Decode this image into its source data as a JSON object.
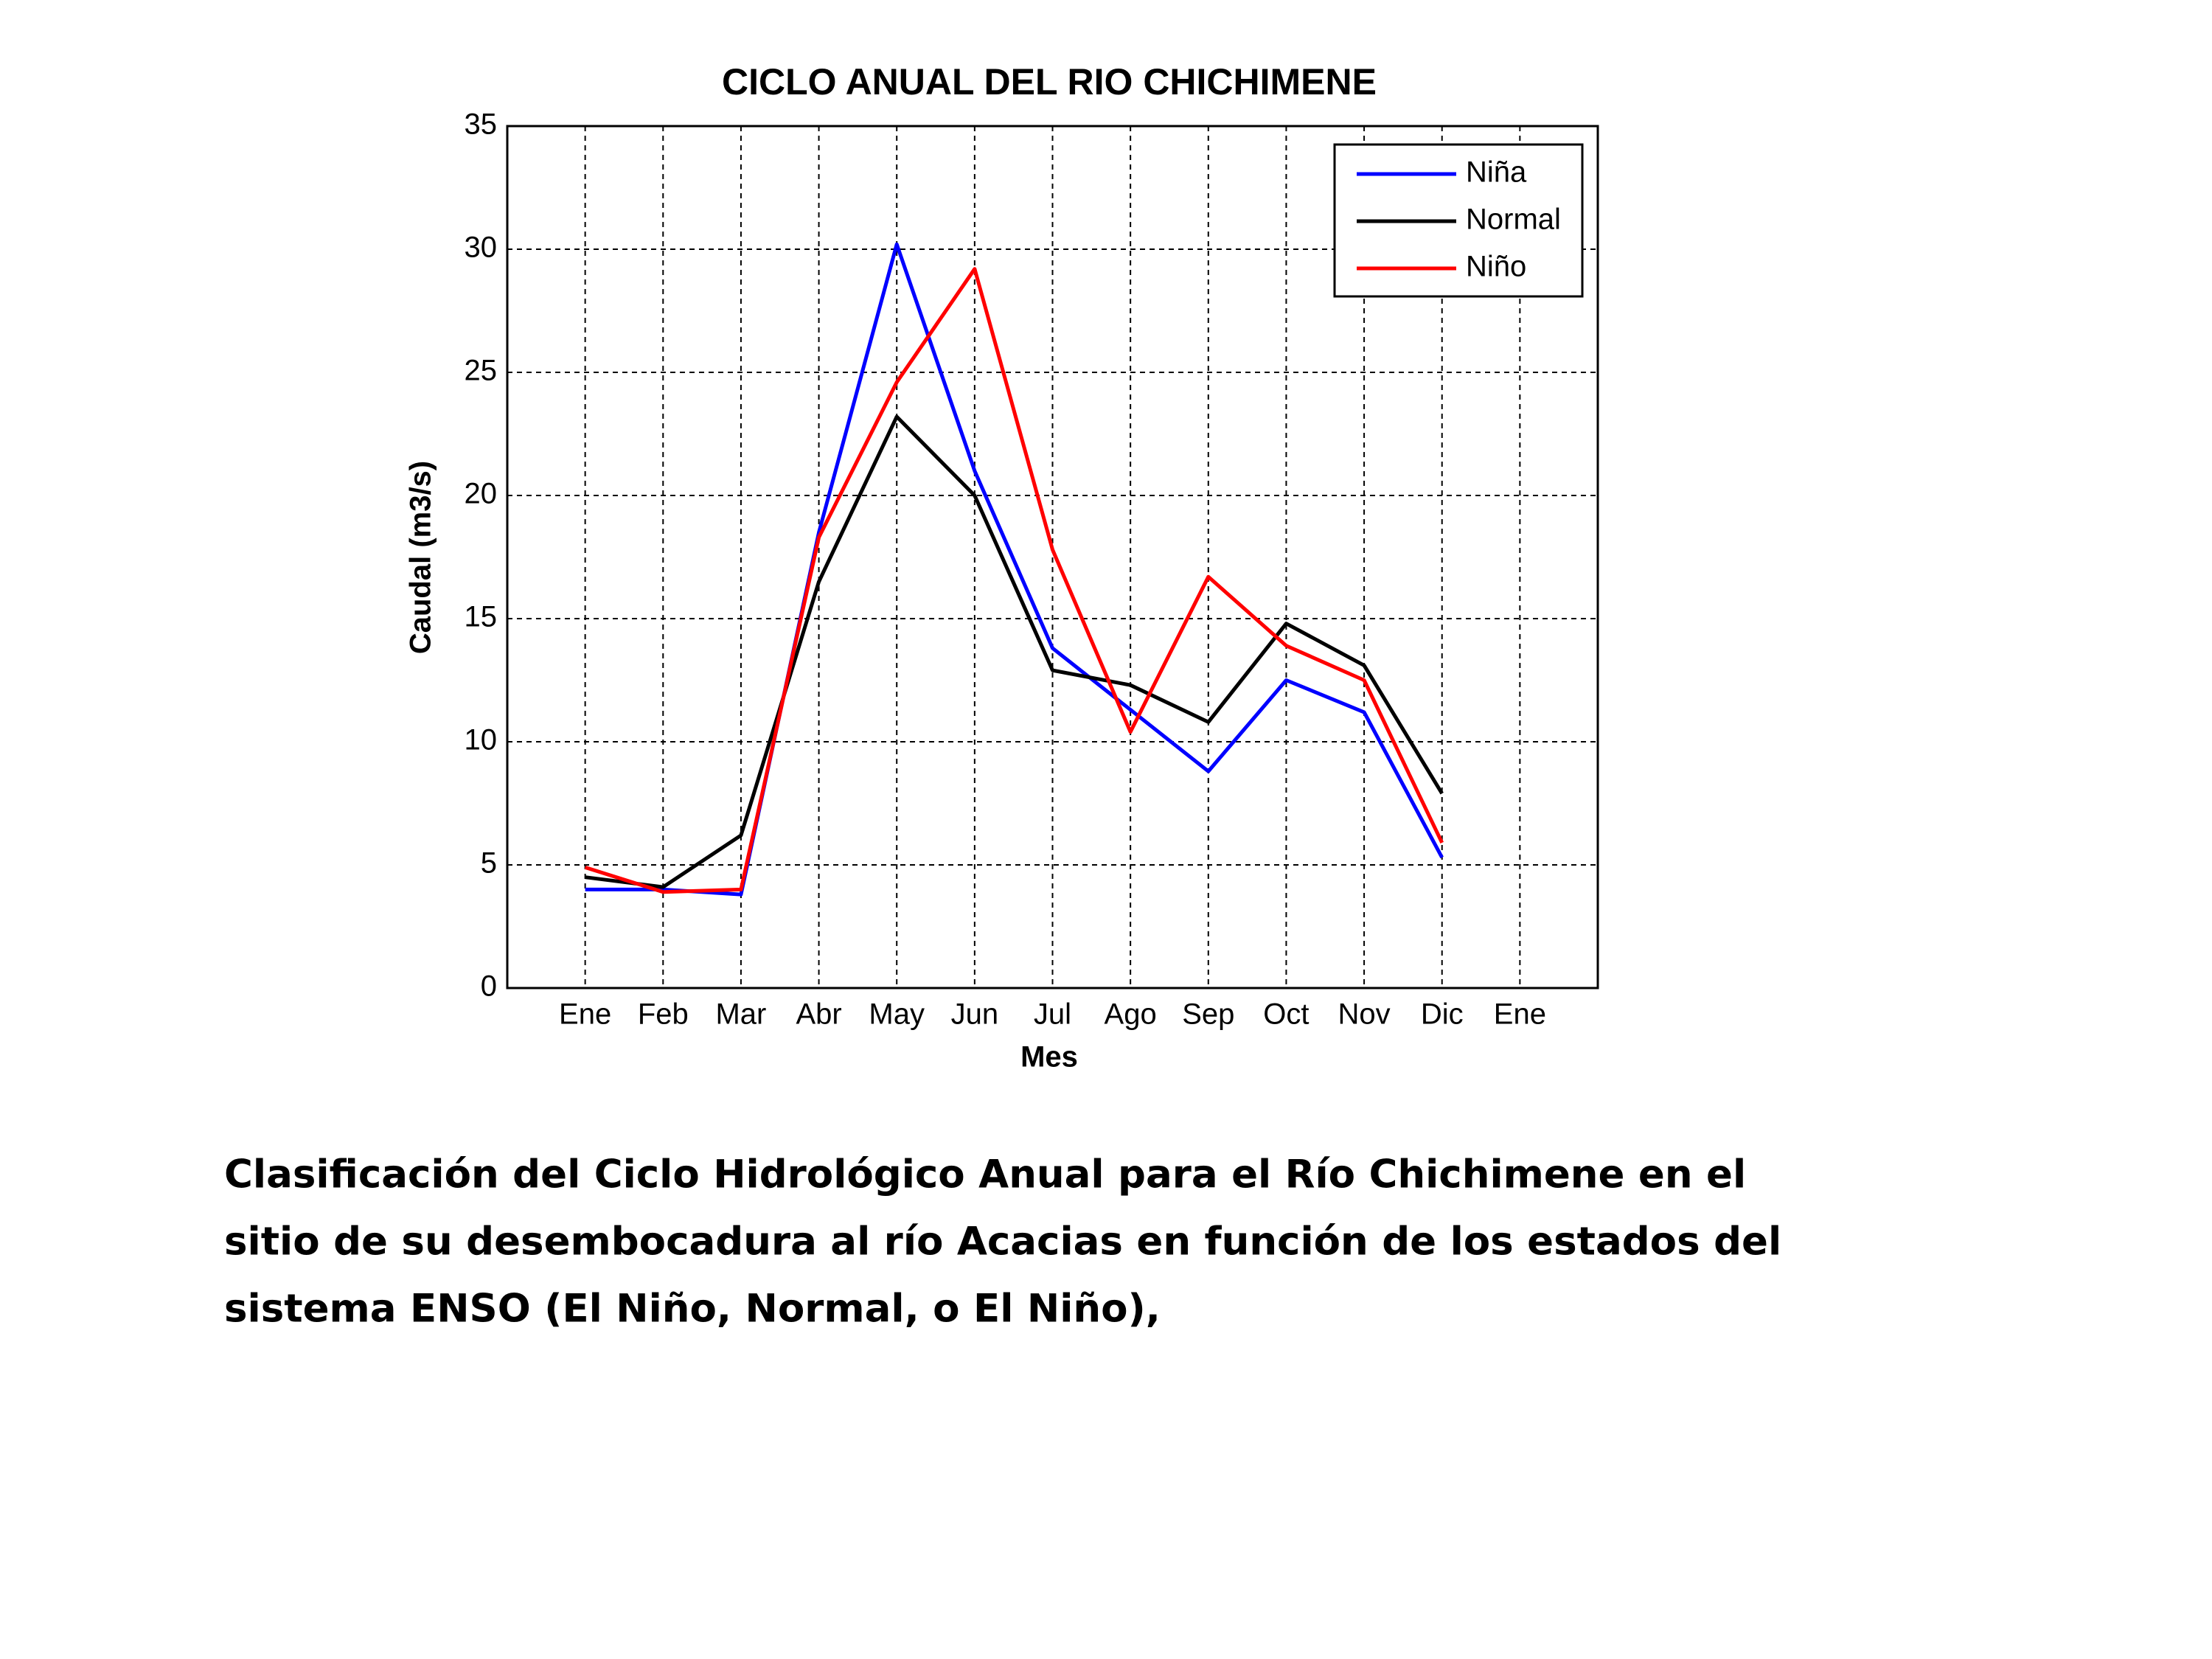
{
  "chart_data": {
    "type": "line",
    "title": "CICLO ANUAL DEL RIO CHICHIMENE",
    "x_label": "Mes",
    "y_label": "Caudal (m3/s)",
    "categories": [
      "Ene",
      "Feb",
      "Mar",
      "Abr",
      "May",
      "Jun",
      "Jul",
      "Ago",
      "Sep",
      "Oct",
      "Nov",
      "Dic",
      "Ene"
    ],
    "series": [
      {
        "name": "Niña",
        "color": "#0000ff",
        "values": [
          4.0,
          4.0,
          3.8,
          18.5,
          30.2,
          21.0,
          13.8,
          11.3,
          8.8,
          12.5,
          11.2,
          5.3,
          null
        ]
      },
      {
        "name": "Normal",
        "color": "#000000",
        "values": [
          4.5,
          4.1,
          6.2,
          16.5,
          23.2,
          20.0,
          12.9,
          12.3,
          10.8,
          14.8,
          13.1,
          7.9,
          null
        ]
      },
      {
        "name": "Niño",
        "color": "#ff0000",
        "values": [
          4.9,
          3.9,
          4.0,
          18.3,
          24.6,
          29.2,
          17.8,
          10.4,
          16.7,
          13.9,
          12.5,
          5.9,
          null
        ]
      }
    ],
    "ylim": [
      0,
      35
    ],
    "yticks": [
      0,
      5,
      10,
      15,
      20,
      25,
      30,
      35
    ],
    "grid": true,
    "legend": "upper right"
  },
  "caption": [
    "Clasificación del Ciclo Hidrológico Anual para el Río Chichimene en el",
    "sitio de su desembocadura al río Acacias en función de los estados del",
    "sistema ENSO (El Niño, Normal, o El Niño),"
  ]
}
